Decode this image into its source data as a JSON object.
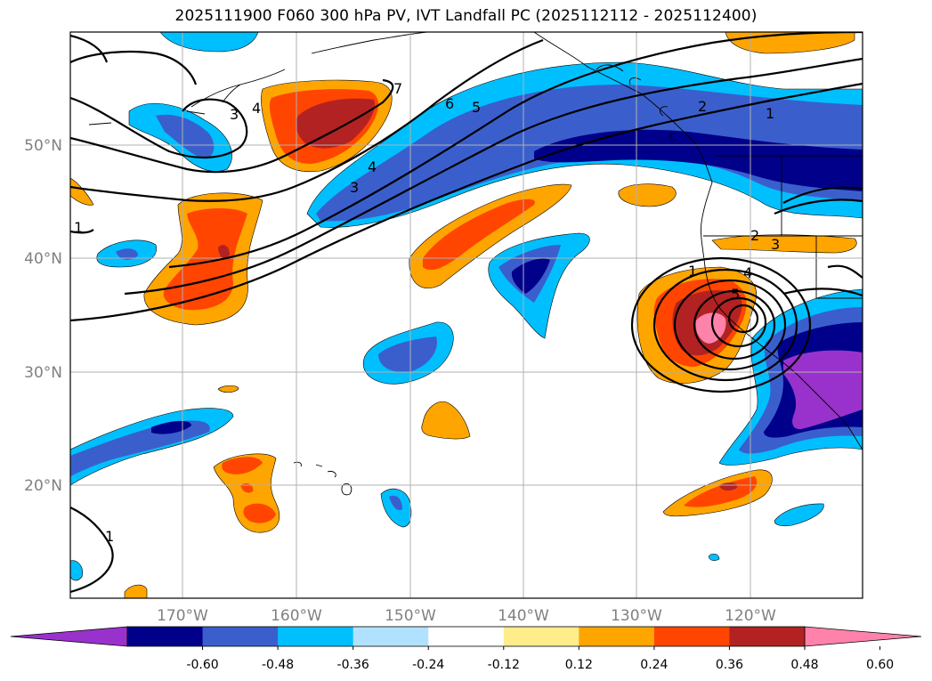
{
  "title": "2025111900 F060 300 hPa PV, IVT Landfall PC (2025112112 - 2025112400)",
  "map": {
    "lon_range": [
      -180,
      -110
    ],
    "lat_range": [
      10,
      60
    ],
    "lon_ticks": [
      {
        "lon": -170,
        "label": "170°W"
      },
      {
        "lon": -160,
        "label": "160°W"
      },
      {
        "lon": -150,
        "label": "150°W"
      },
      {
        "lon": -140,
        "label": "140°W"
      },
      {
        "lon": -130,
        "label": "130°W"
      },
      {
        "lon": -120,
        "label": "120°W"
      }
    ],
    "lat_ticks": [
      {
        "lat": 50,
        "label": "50°N"
      },
      {
        "lat": 40,
        "label": "40°N"
      },
      {
        "lat": 30,
        "label": "30°N"
      },
      {
        "lat": 20,
        "label": "20°N"
      }
    ],
    "grid": true,
    "contour_labels": [
      "1",
      "2",
      "3",
      "4",
      "5",
      "6",
      "7"
    ]
  },
  "colorbar": {
    "colors": [
      "#9932CC",
      "#00008B",
      "#3A5FCD",
      "#00BFFF",
      "#B0E2FF",
      "#FFFFFF",
      "#FFEC8B",
      "#FFA500",
      "#FF4500",
      "#B22222",
      "#FF82AB"
    ],
    "tick_values": [
      "-0.60",
      "-0.48",
      "-0.36",
      "-0.24",
      "-0.12",
      "0.12",
      "0.24",
      "0.36",
      "0.48",
      "0.60"
    ],
    "extend": "both"
  }
}
